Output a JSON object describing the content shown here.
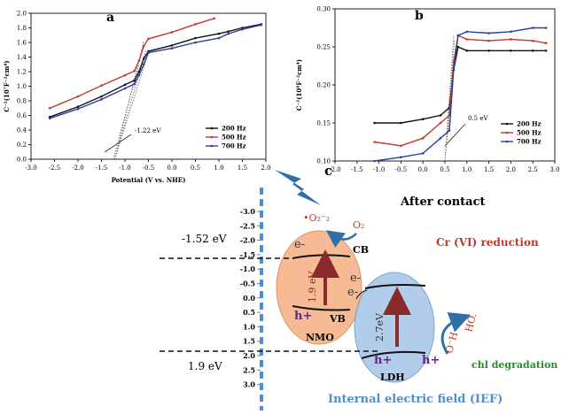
{
  "figure": {
    "panel_a": {
      "label": "a",
      "ylabel": "C⁻²(10⁷F⁻²cm⁴)",
      "xlabel": "Potential (V vs. NHE)",
      "xlim": [
        -3.0,
        2.0
      ],
      "ylim": [
        0.0,
        2.0
      ],
      "xticks": [
        "-3.0",
        "-2.5",
        "-2.0",
        "-1.5",
        "-1.0",
        "-0.5",
        "0.0",
        "0.5",
        "1.0",
        "1.5",
        "2.0"
      ],
      "yticks": [
        "0.0",
        "0.2",
        "0.4",
        "0.6",
        "0.8",
        "1.0",
        "1.2",
        "1.4",
        "1.6",
        "1.8",
        "2.0"
      ],
      "annotation": "-1.22 eV",
      "legend": [
        "200 Hz",
        "500 Hz",
        "700 Hz"
      ]
    },
    "panel_b": {
      "label": "b",
      "ylabel": "C⁻²(10⁸F⁻²cm⁴)",
      "xlabel": "Potential (V vs. NHE)",
      "xlim": [
        -2.0,
        3.0
      ],
      "ylim": [
        0.1,
        0.3
      ],
      "xticks": [
        "-2.0",
        "-1.5",
        "-1.0",
        "-0.5",
        "0.0",
        "0.5",
        "1.0",
        "1.5",
        "2.0",
        "2.5",
        "3.0"
      ],
      "yticks": [
        "0.10",
        "0.15",
        "0.20",
        "0.25",
        "0.30"
      ],
      "annotation": "0.5 eV",
      "legend": [
        "200 Hz",
        "500 Hz",
        "700 Hz"
      ]
    },
    "panel_c": {
      "label": "c",
      "title": "After contact",
      "scale_ticks": [
        "-3.0",
        "-2.5",
        "-2.0",
        "-1.5",
        "-1.0",
        "-0.5",
        "0.0",
        "0.5",
        "1.0",
        "1.5",
        "2.0",
        "2.5",
        "3.0"
      ],
      "cb_level": "-1.52 eV",
      "vb_level": "1.9 eV",
      "nmo_label": "NMO",
      "ldh_label": "LDH",
      "nmo_gap": "1.9 eV",
      "ldh_gap": "2.7eV",
      "cb_label": "CB",
      "vb_label": "VB",
      "electron": "e-",
      "hole": "h+",
      "superoxide": "•O₂⁻₂",
      "oxygen": "O₂",
      "cr_reduction": "Cr (VI) reduction",
      "chl_degradation": "chl degradation",
      "ho_radical": "HO.",
      "oh_ion": "O⁻H",
      "ief": "Internal electric field (IEF)"
    }
  },
  "chart_data": [
    {
      "type": "line",
      "title": "a",
      "xlabel": "Potential (V vs. NHE)",
      "ylabel": "C⁻²(10⁷F⁻²cm⁴)",
      "xlim": [
        -3.0,
        2.0
      ],
      "ylim": [
        0.0,
        2.0
      ],
      "legend_position": "bottom-right",
      "series": [
        {
          "name": "200 Hz",
          "color": "#111111",
          "x": [
            -2.6,
            -2.0,
            -1.5,
            -1.0,
            -0.8,
            -0.7,
            -0.6,
            -0.5,
            0.0,
            0.5,
            1.0,
            1.2,
            1.5,
            1.9
          ],
          "y": [
            0.58,
            0.72,
            0.86,
            1.02,
            1.08,
            1.2,
            1.38,
            1.48,
            1.56,
            1.66,
            1.72,
            1.75,
            1.8,
            1.85
          ]
        },
        {
          "name": "500 Hz",
          "color": "#c0392b",
          "x": [
            -2.6,
            -2.0,
            -1.5,
            -1.0,
            -0.8,
            -0.7,
            -0.6,
            -0.5,
            0.0,
            0.5,
            0.9
          ],
          "y": [
            0.7,
            0.86,
            1.01,
            1.15,
            1.21,
            1.35,
            1.55,
            1.65,
            1.74,
            1.85,
            1.93
          ]
        },
        {
          "name": "700 Hz",
          "color": "#2c3e9e",
          "x": [
            -2.6,
            -2.0,
            -1.5,
            -1.0,
            -0.8,
            -0.7,
            -0.6,
            -0.5,
            0.0,
            0.5,
            1.0,
            1.2,
            1.5,
            1.9
          ],
          "y": [
            0.56,
            0.69,
            0.82,
            0.97,
            1.03,
            1.15,
            1.3,
            1.46,
            1.52,
            1.6,
            1.66,
            1.72,
            1.78,
            1.84
          ]
        }
      ]
    },
    {
      "type": "line",
      "title": "b",
      "xlabel": "Potential (V vs. NHE)",
      "ylabel": "C⁻²(10⁸F⁻²cm⁴)",
      "xlim": [
        -2.0,
        3.0
      ],
      "ylim": [
        0.1,
        0.3
      ],
      "legend_position": "bottom-right",
      "series": [
        {
          "name": "200 Hz",
          "color": "#111111",
          "x": [
            -1.1,
            -0.5,
            0.0,
            0.4,
            0.6,
            0.7,
            0.8,
            1.0,
            1.5,
            2.0,
            2.5,
            2.8
          ],
          "y": [
            0.15,
            0.15,
            0.155,
            0.16,
            0.17,
            0.22,
            0.25,
            0.245,
            0.245,
            0.245,
            0.245,
            0.245
          ]
        },
        {
          "name": "500 Hz",
          "color": "#c0392b",
          "x": [
            -1.1,
            -0.5,
            0.0,
            0.4,
            0.6,
            0.7,
            0.8,
            1.0,
            1.5,
            2.0,
            2.5,
            2.8
          ],
          "y": [
            0.125,
            0.12,
            0.13,
            0.15,
            0.16,
            0.23,
            0.265,
            0.26,
            0.258,
            0.26,
            0.258,
            0.255
          ]
        },
        {
          "name": "700 Hz",
          "color": "#2c3e9e",
          "x": [
            -1.1,
            -0.5,
            0.0,
            0.4,
            0.6,
            0.7,
            0.8,
            1.0,
            1.5,
            2.0,
            2.5,
            2.8
          ],
          "y": [
            0.1,
            0.105,
            0.11,
            0.13,
            0.14,
            0.22,
            0.265,
            0.27,
            0.268,
            0.27,
            0.275,
            0.275
          ]
        }
      ]
    }
  ]
}
